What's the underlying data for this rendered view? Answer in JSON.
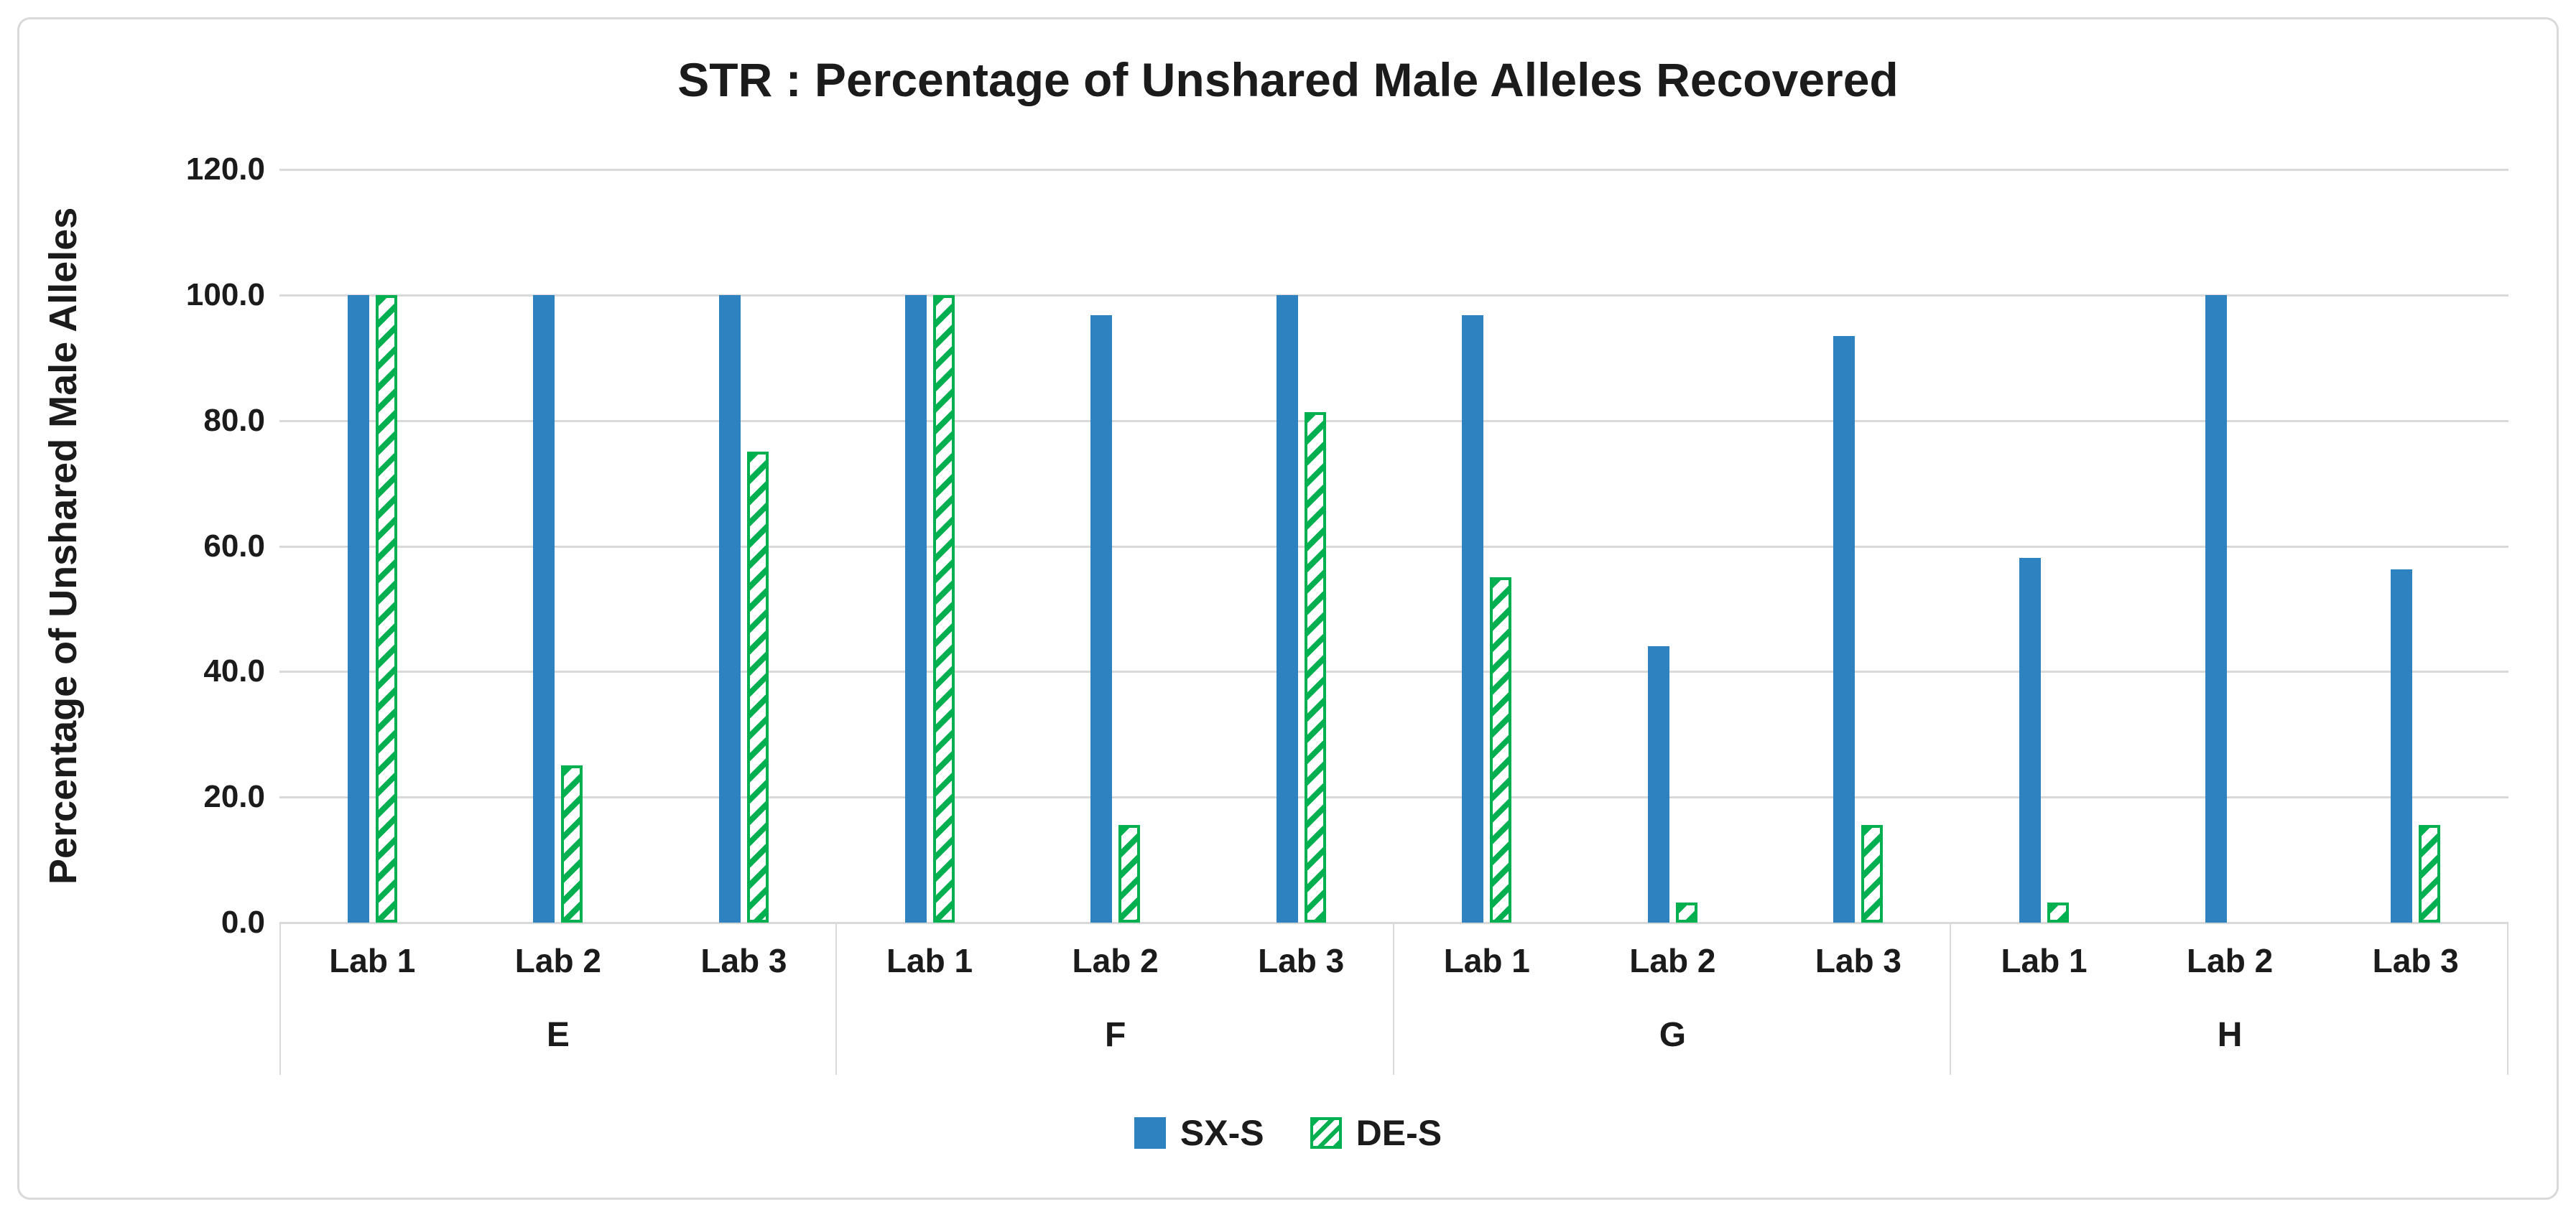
{
  "title": "STR : Percentage of Unshared Male Alleles Recovered",
  "colors": {
    "sxs_blue": "#2E82C0",
    "des_green": "#00B050",
    "gridline": "#D9D9D9",
    "frame_border": "#D9D9D9",
    "text": "#1b1b1b",
    "background": "#ffffff"
  },
  "chart_data": {
    "type": "bar",
    "title": "STR : Percentage of Unshared Male Alleles Recovered",
    "xlabel": "",
    "ylabel": "Percentage of Unshared Male Alleles",
    "ylim": [
      0,
      120
    ],
    "ytick_step": 20,
    "y_ticks": [
      "120.0",
      "100.0",
      "80.0",
      "60.0",
      "40.0",
      "20.0",
      "0.0"
    ],
    "grid": true,
    "legend_position": "bottom-center",
    "groups": [
      "E",
      "F",
      "G",
      "H"
    ],
    "categories_per_group": [
      "Lab 1",
      "Lab 2",
      "Lab 3"
    ],
    "series": [
      {
        "name": "SX-S",
        "pattern": "solid",
        "color": "#2E82C0",
        "values": {
          "E": [
            100.0,
            100.0,
            100.0
          ],
          "F": [
            100.0,
            96.8,
            100.0
          ],
          "G": [
            96.8,
            44.0,
            93.5
          ],
          "H": [
            58.1,
            100.0,
            56.3
          ]
        }
      },
      {
        "name": "DE-S",
        "pattern": "diagonal-hatch",
        "color": "#00B050",
        "values": {
          "E": [
            100.0,
            25.0,
            75.0
          ],
          "F": [
            100.0,
            15.6,
            81.3
          ],
          "G": [
            55.0,
            3.2,
            15.6
          ],
          "H": [
            3.2,
            0.0,
            15.6
          ]
        }
      }
    ]
  }
}
